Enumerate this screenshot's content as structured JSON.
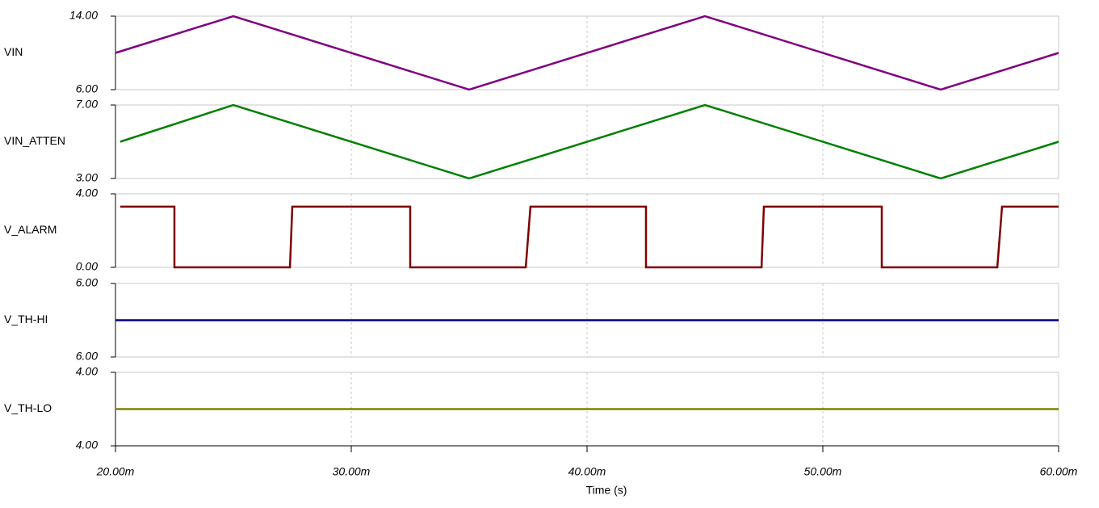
{
  "chart_data": [
    {
      "type": "line",
      "xlim": [
        0.02,
        0.06
      ],
      "ylim": [
        6,
        14
      ],
      "yticks": [
        {
          "value": 6,
          "label": "6.00"
        },
        {
          "value": 14,
          "label": "14.00"
        }
      ],
      "series": [
        {
          "name": "VIN",
          "color": "#800080",
          "x": [
            0.02,
            0.025,
            0.035,
            0.045,
            0.055,
            0.06
          ],
          "values": [
            10,
            14,
            6,
            14,
            6,
            10
          ]
        }
      ]
    },
    {
      "type": "line",
      "xlim": [
        0.02,
        0.06
      ],
      "ylim": [
        3,
        7
      ],
      "yticks": [
        {
          "value": 3,
          "label": "3.00"
        },
        {
          "value": 7,
          "label": "7.00"
        }
      ],
      "series": [
        {
          "name": "VIN_ATTEN",
          "color": "#008000",
          "x": [
            0.0202,
            0.025,
            0.035,
            0.045,
            0.055,
            0.06
          ],
          "values": [
            5,
            7,
            3,
            7,
            3,
            5
          ]
        }
      ]
    },
    {
      "type": "line",
      "xlim": [
        0.02,
        0.06
      ],
      "ylim": [
        0,
        4
      ],
      "yticks": [
        {
          "value": 0,
          "label": "0.00"
        },
        {
          "value": 4,
          "label": "4.00"
        }
      ],
      "series": [
        {
          "name": "V_ALARM",
          "color": "#800000",
          "x": [
            0.0202,
            0.0225,
            0.0225,
            0.0274,
            0.0275,
            0.0325,
            0.0325,
            0.0374,
            0.0376,
            0.0425,
            0.0425,
            0.0474,
            0.0475,
            0.0525,
            0.0525,
            0.0574,
            0.0576,
            0.06
          ],
          "values": [
            3.3,
            3.3,
            0,
            0,
            3.3,
            3.3,
            0,
            0,
            3.3,
            3.3,
            0,
            0,
            3.3,
            3.3,
            0,
            0,
            3.3,
            3.3
          ]
        }
      ]
    },
    {
      "type": "line",
      "xlim": [
        0.02,
        0.06
      ],
      "ylim": [
        5.996,
        6.004
      ],
      "yticks": [
        {
          "value": 5.996,
          "label": "6.00"
        },
        {
          "value": 6.004,
          "label": "6.00"
        }
      ],
      "series": [
        {
          "name": "V_TH-HI",
          "color": "#000080",
          "x": [
            0.02,
            0.06
          ],
          "values": [
            6,
            6
          ]
        }
      ]
    },
    {
      "type": "line",
      "xlim": [
        0.02,
        0.06
      ],
      "ylim": [
        3.996,
        4.004
      ],
      "yticks": [
        {
          "value": 3.996,
          "label": "4.00"
        },
        {
          "value": 4.004,
          "label": "4.00"
        }
      ],
      "series": [
        {
          "name": "V_TH-LO",
          "color": "#808000",
          "x": [
            0.02,
            0.06
          ],
          "values": [
            4,
            4
          ]
        }
      ],
      "xlabel": "Time (s)",
      "xticks": [
        {
          "value": 0.02,
          "label": "20.00m"
        },
        {
          "value": 0.03,
          "label": "30.00m"
        },
        {
          "value": 0.04,
          "label": "40.00m"
        },
        {
          "value": 0.05,
          "label": "50.00m"
        },
        {
          "value": 0.06,
          "label": "60.00m"
        }
      ]
    }
  ]
}
